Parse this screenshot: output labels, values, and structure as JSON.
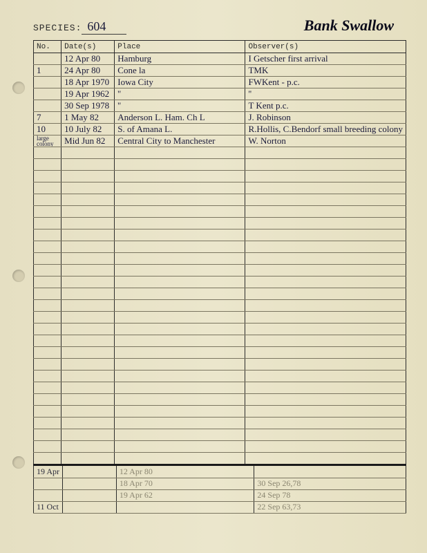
{
  "header": {
    "species_label": "SPECIES:",
    "species_number": "604",
    "species_name": "Bank Swallow"
  },
  "columns": {
    "no": "No.",
    "date": "Date(s)",
    "place": "Place",
    "observer": "Observer(s)"
  },
  "rows": [
    {
      "no": "",
      "date": "12 Apr 80",
      "place": "Hamburg",
      "obs": "I Getscher   first arrival"
    },
    {
      "no": "1",
      "date": "24 Apr 80",
      "place": "Cone la",
      "obs": "TMK",
      "faded": true
    },
    {
      "no": "",
      "date": "18 Apr 1970",
      "place": "Iowa City",
      "obs": "FWKent - p.c."
    },
    {
      "no": "",
      "date": "19 Apr 1962",
      "place": "  ''",
      "obs": "       ''"
    },
    {
      "no": "",
      "date": "30 Sep 1978",
      "place": "  ''",
      "obs": "T Kent   p.c."
    },
    {
      "no": "7",
      "date": "1 May 82",
      "place": "Anderson L.  Ham. Ch L",
      "obs": "J. Robinson"
    },
    {
      "no": "10",
      "date": "10 July 82",
      "place": "S. of Amana L.",
      "obs": "R.Hollis, C.Bendorf  small breeding colony"
    },
    {
      "no": "large colony",
      "date": "Mid Jun 82",
      "place": "Central City to Manchester",
      "obs": "W. Norton"
    }
  ],
  "empty_row_count": 27,
  "bottom": {
    "left_dates": [
      "19 Apr",
      "",
      "",
      "11 Oct"
    ],
    "mid_dates": [
      "12 Apr 80",
      "18 Apr 70",
      "19 Apr 62",
      ""
    ],
    "right_dates": [
      "",
      "30 Sep 26,78",
      "24 Sep 78",
      "22 Sep 63,73"
    ]
  }
}
